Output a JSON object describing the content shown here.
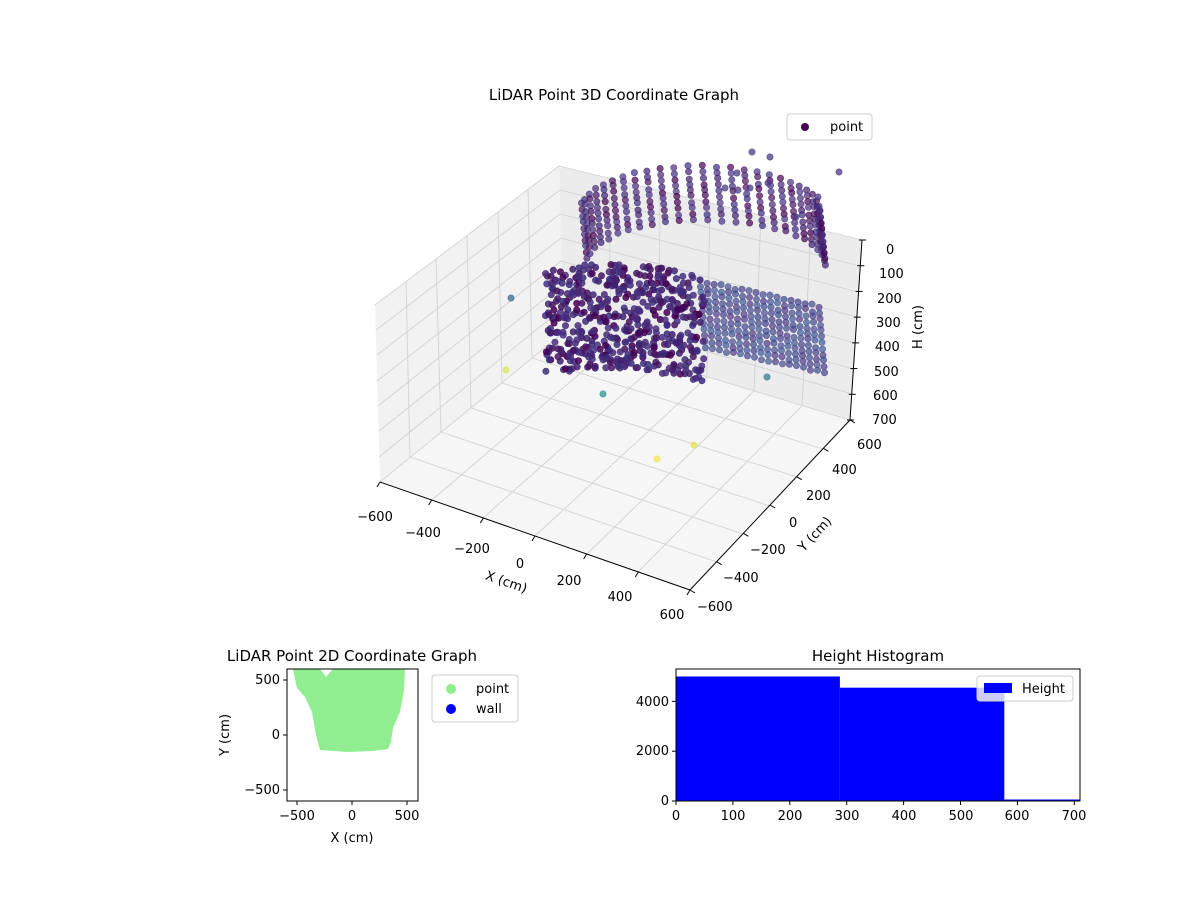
{
  "chart_data": [
    {
      "type": "scatter3d",
      "title": "LiDAR Point 3D Coordinate Graph",
      "xlabel": "X (cm)",
      "ylabel": "Y (cm)",
      "zlabel": "H (cm)",
      "xlim": [
        -600,
        600
      ],
      "ylim": [
        -600,
        600
      ],
      "zlim": [
        700,
        0
      ],
      "x_ticks": [
        "−600",
        "−400",
        "−200",
        "0",
        "200",
        "400",
        "600"
      ],
      "y_ticks": [
        "−600",
        "−400",
        "−200",
        "0",
        "200",
        "400",
        "600"
      ],
      "z_ticks": [
        "0",
        "100",
        "200",
        "300",
        "400",
        "500",
        "600",
        "700"
      ],
      "legend": {
        "placement": "top-right",
        "label": "point"
      },
      "colormap": "viridis",
      "grid": true
    },
    {
      "type": "scatter",
      "title": "LiDAR Point 2D Coordinate Graph",
      "xlabel": "X (cm)",
      "ylabel": "Y (cm)",
      "xlim": [
        -600,
        600
      ],
      "ylim": [
        -600,
        600
      ],
      "x_ticks": [
        "−500",
        "0",
        "500"
      ],
      "y_ticks": [
        "−500",
        "0",
        "500"
      ],
      "series": [
        {
          "name": "point",
          "color": "#90ee90"
        },
        {
          "name": "wall",
          "color": "#0000ff"
        }
      ],
      "legend": {
        "placement": "outside-right"
      }
    },
    {
      "type": "bar",
      "title": "Height Histogram",
      "xlim": [
        0,
        710
      ],
      "ylim": [
        0,
        5300
      ],
      "x_ticks": [
        "0",
        "100",
        "200",
        "300",
        "400",
        "500",
        "600",
        "700"
      ],
      "y_ticks": [
        "0",
        "2000",
        "4000"
      ],
      "bins": [
        {
          "start": 0,
          "end": 288,
          "count": 5000
        },
        {
          "start": 288,
          "end": 577,
          "count": 4550
        },
        {
          "start": 577,
          "end": 710,
          "count": 60
        }
      ],
      "series": [
        {
          "name": "Height",
          "color": "#0000ff"
        }
      ],
      "legend": {
        "placement": "top-right"
      }
    }
  ]
}
